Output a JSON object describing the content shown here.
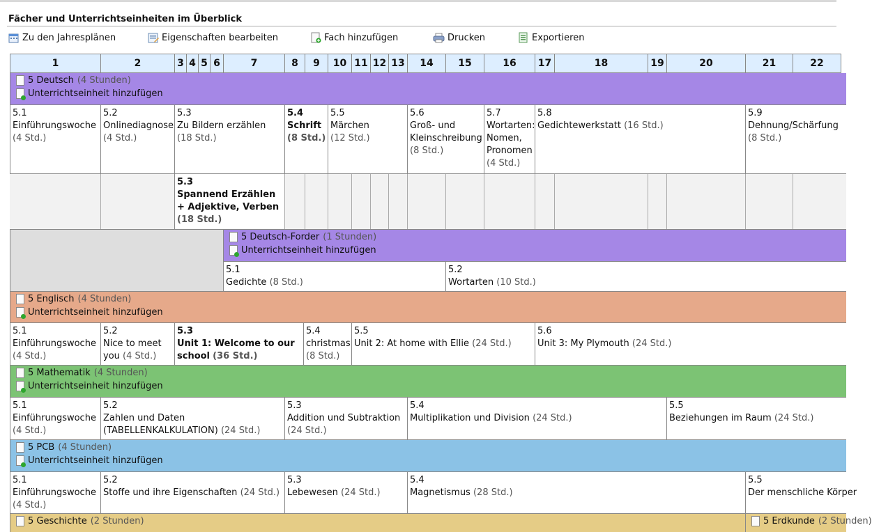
{
  "title": "Fächer und Unterrichtseinheiten im Überblick",
  "toolbar": {
    "annual_plans": "Zu den Jahresplänen",
    "edit_properties": "Eigenschaften bearbeiten",
    "add_subject": "Fach hinzufügen",
    "print": "Drucken",
    "export": "Exportieren"
  },
  "weeks": [
    "1",
    "2",
    "3",
    "4",
    "5",
    "6",
    "7",
    "8",
    "9",
    "10",
    "11",
    "12",
    "13",
    "14",
    "15",
    "16",
    "17",
    "18",
    "19",
    "20",
    "21",
    "22"
  ],
  "add_unit_label": "Unterrichtseinheit hinzufügen",
  "colors": {
    "deutsch": "#a587e6",
    "englisch": "#e6a98a",
    "mathematik": "#7cc374",
    "pcb": "#8bc2e6",
    "geschichte": "#e5cc86",
    "header": "#ddeeff"
  },
  "subjects": {
    "deutsch": {
      "name": "5 Deutsch",
      "hours": "(4 Stunden)",
      "units": [
        {
          "num": "5.1",
          "title": "Einführungswoche",
          "std": "(4 Std.)"
        },
        {
          "num": "5.2",
          "title": "Onlinediagnose",
          "std": "(4 Std.)"
        },
        {
          "num": "5.3",
          "title": "Zu Bildern erzählen",
          "std": "(18 Std.)"
        },
        {
          "num": "5.4",
          "title": "Schrift",
          "std": "(8 Std.)"
        },
        {
          "num": "5.5",
          "title": "Märchen",
          "std": "(12 Std.)"
        },
        {
          "num": "5.6",
          "title": "Groß- und Kleinschreibung",
          "std": "(8 Std.)"
        },
        {
          "num": "5.7",
          "title": "Wortarten: Nomen, Pronomen",
          "std": "(4 Std.)"
        },
        {
          "num": "5.8",
          "title": "Gedichtewerkstatt",
          "std": "(16 Std.)"
        },
        {
          "num": "5.9",
          "title": "Dehnung/Schärfung",
          "std": "(8 Std.)"
        }
      ],
      "alt_unit": {
        "num": "5.3",
        "title": "Spannend Erzählen + Adjektive, Verben",
        "std": "(18 Std.)"
      }
    },
    "forder": {
      "name": "5 Deutsch-Forder",
      "hours": "(1 Stunden)",
      "units": [
        {
          "num": "5.1",
          "title": "Gedichte",
          "std": "(8 Std.)"
        },
        {
          "num": "5.2",
          "title": "Wortarten",
          "std": "(10 Std.)"
        }
      ]
    },
    "englisch": {
      "name": "5 Englisch",
      "hours": "(4 Stunden)",
      "units": [
        {
          "num": "5.1",
          "title": "Einführungswoche",
          "std": "(4 Std.)"
        },
        {
          "num": "5.2",
          "title": "Nice to meet you",
          "std": "(4 Std.)"
        },
        {
          "num": "5.3",
          "title": "Unit 1: Welcome to our school",
          "std": "(36 Std.)"
        },
        {
          "num": "5.4",
          "title": "christmas",
          "std": "(8 Std.)"
        },
        {
          "num": "5.5",
          "title": "Unit 2: At home with Ellie",
          "std": "(24 Std.)"
        },
        {
          "num": "5.6",
          "title": "Unit 3: My Plymouth",
          "std": "(24 Std.)"
        }
      ]
    },
    "mathematik": {
      "name": "5 Mathematik",
      "hours": "(4 Stunden)",
      "units": [
        {
          "num": "5.1",
          "title": "Einführungswoche",
          "std": "(4 Std.)"
        },
        {
          "num": "5.2",
          "title": "Zahlen und Daten (TABELLENKALKULATION)",
          "std": "(24 Std.)"
        },
        {
          "num": "5.3",
          "title": "Addition und Subtraktion",
          "std": "(24 Std.)"
        },
        {
          "num": "5.4",
          "title": "Multiplikation und Division",
          "std": "(24 Std.)"
        },
        {
          "num": "5.5",
          "title": "Beziehungen im Raum",
          "std": "(24 Std.)"
        }
      ]
    },
    "pcb": {
      "name": "5 PCB",
      "hours": "(4 Stunden)",
      "units": [
        {
          "num": "5.1",
          "title": "Einführungswoche",
          "std": "(4 Std.)"
        },
        {
          "num": "5.2",
          "title": "Stoffe und ihre Eigenschaften",
          "std": "(24 Std.)"
        },
        {
          "num": "5.3",
          "title": "Lebewesen",
          "std": "(24 Std.)"
        },
        {
          "num": "5.4",
          "title": "Magnetismus",
          "std": "(28 Std.)"
        },
        {
          "num": "5.5",
          "title": "Der menschliche Körper",
          "std": ""
        }
      ]
    },
    "geschichte": {
      "name": "5 Geschichte",
      "hours": "(2 Stunden)"
    },
    "erdkunde": {
      "name": "5 Erdkunde",
      "hours": "(2 Stunden)"
    }
  }
}
